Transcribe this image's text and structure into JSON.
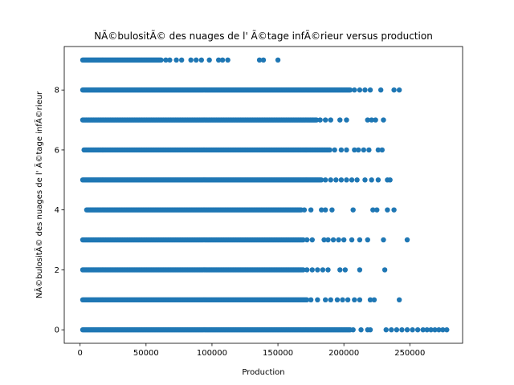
{
  "chart_data": {
    "type": "scatter",
    "title": "NÃ©bulositÃ©  des nuages de l' Ã©tage infÃ©rieur versus production",
    "xlabel": "Production",
    "ylabel": "NÃ©bulositÃ©  des nuages de l' Ã©tage infÃ©rieur",
    "xlim": [
      -12000,
      290000
    ],
    "ylim": [
      -0.45,
      9.45
    ],
    "xticks": [
      0,
      50000,
      100000,
      150000,
      200000,
      250000
    ],
    "xtick_labels": [
      "0",
      "50000",
      "100000",
      "150000",
      "200000",
      "250000"
    ],
    "yticks": [
      0,
      2,
      4,
      6,
      8
    ],
    "ytick_labels": [
      "0",
      "2",
      "4",
      "6",
      "8"
    ],
    "grid": false,
    "marker_color": "#1f77b4",
    "rows": [
      {
        "y": 0,
        "dense": [
          2000,
          205000
        ],
        "sparse": [
          207000,
          213000,
          218000,
          220000,
          232000,
          236000,
          240000,
          244000,
          248000,
          252000,
          256000,
          260000,
          263000,
          266000,
          269000,
          272000,
          275000,
          278000
        ]
      },
      {
        "y": 1,
        "dense": [
          2000,
          172000
        ],
        "sparse": [
          175000,
          180000,
          186000,
          190000,
          195000,
          199000,
          203000,
          208000,
          212000,
          220000,
          223000,
          242000
        ]
      },
      {
        "y": 2,
        "dense": [
          2000,
          170000
        ],
        "sparse": [
          172000,
          176000,
          180000,
          184000,
          188000,
          197000,
          201000,
          212000,
          231000
        ]
      },
      {
        "y": 3,
        "dense": [
          2000,
          170000
        ],
        "sparse": [
          172000,
          176000,
          185000,
          188000,
          192000,
          196000,
          200000,
          206000,
          212000,
          218000,
          230000,
          248000
        ]
      },
      {
        "y": 4,
        "dense": [
          5000,
          168000
        ],
        "sparse": [
          170000,
          175000,
          183000,
          186000,
          191000,
          207000,
          222000,
          225000,
          233000,
          238000
        ]
      },
      {
        "y": 5,
        "dense": [
          2000,
          183000
        ],
        "sparse": [
          186000,
          190000,
          194000,
          198000,
          202000,
          206000,
          210000,
          216000,
          221000,
          226000,
          233000,
          235000
        ]
      },
      {
        "y": 6,
        "dense": [
          3000,
          190000
        ],
        "sparse": [
          193000,
          198000,
          202000,
          208000,
          211000,
          215000,
          219000,
          226000,
          229000
        ]
      },
      {
        "y": 7,
        "dense": [
          2000,
          180000
        ],
        "sparse": [
          182000,
          186000,
          190000,
          197000,
          202000,
          218000,
          221000,
          224000,
          230000
        ]
      },
      {
        "y": 8,
        "dense": [
          2000,
          205000
        ],
        "sparse": [
          208000,
          212000,
          216000,
          220000,
          228000,
          238000,
          242000
        ]
      },
      {
        "y": 9,
        "dense": [
          2000,
          62000
        ],
        "sparse": [
          65000,
          68000,
          73000,
          77000,
          84000,
          88000,
          92000,
          98000,
          105000,
          108000,
          112000,
          136000,
          139000,
          150000
        ]
      }
    ]
  }
}
